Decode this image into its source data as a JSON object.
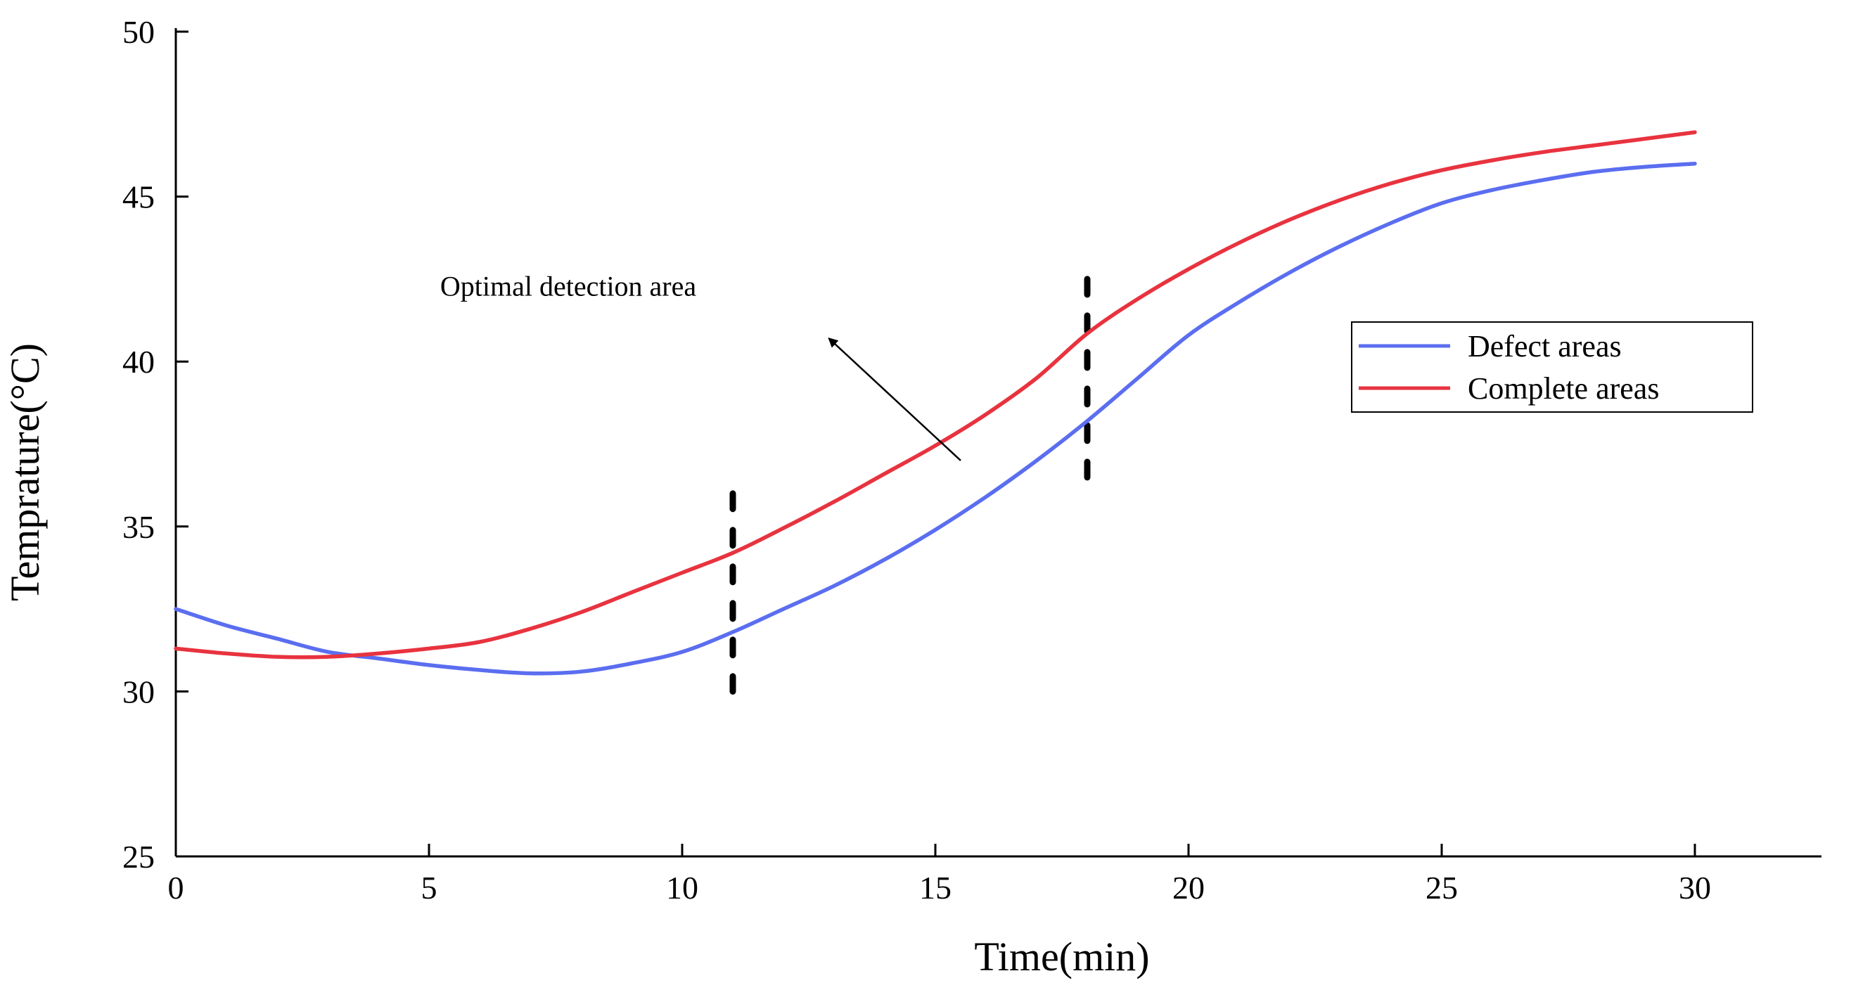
{
  "chart_data": {
    "type": "line",
    "title": "",
    "xlabel": "Time(min)",
    "ylabel": "Temprature(°C)",
    "xlim": [
      0,
      32.5
    ],
    "ylim": [
      25,
      50
    ],
    "xticks": [
      0,
      5,
      10,
      15,
      20,
      25,
      30
    ],
    "yticks": [
      25,
      30,
      35,
      40,
      45,
      50
    ],
    "grid": false,
    "legend_position": "right",
    "series": [
      {
        "name": "Defect areas",
        "color": "#5b6ef0",
        "x": [
          0,
          1,
          2,
          3,
          4,
          5,
          6,
          7,
          8,
          9,
          10,
          11,
          12,
          13,
          14,
          15,
          16,
          17,
          18,
          19,
          20,
          21,
          22,
          23,
          24,
          25,
          26,
          27,
          28,
          29,
          30
        ],
        "y": [
          32.5,
          32.0,
          31.6,
          31.2,
          31.0,
          30.8,
          30.65,
          30.55,
          30.6,
          30.85,
          31.2,
          31.8,
          32.5,
          33.2,
          34.0,
          34.9,
          35.9,
          37.0,
          38.2,
          39.5,
          40.8,
          41.8,
          42.7,
          43.5,
          44.2,
          44.8,
          45.2,
          45.5,
          45.75,
          45.9,
          46.0
        ]
      },
      {
        "name": "Complete areas",
        "color": "#e8333f",
        "x": [
          0,
          1,
          2,
          3,
          4,
          5,
          6,
          7,
          8,
          9,
          10,
          11,
          12,
          13,
          14,
          15,
          16,
          17,
          18,
          19,
          20,
          21,
          22,
          23,
          24,
          25,
          26,
          27,
          28,
          29,
          30
        ],
        "y": [
          31.3,
          31.15,
          31.05,
          31.05,
          31.15,
          31.3,
          31.5,
          31.9,
          32.4,
          33.0,
          33.6,
          34.2,
          34.95,
          35.75,
          36.6,
          37.45,
          38.4,
          39.5,
          40.85,
          41.9,
          42.8,
          43.6,
          44.3,
          44.9,
          45.4,
          45.8,
          46.1,
          46.35,
          46.55,
          46.75,
          46.95
        ]
      }
    ],
    "markers": [
      {
        "type": "dashed-vline",
        "x": 11,
        "y_range": [
          30,
          36
        ]
      },
      {
        "type": "dashed-vline",
        "x": 18,
        "y_range": [
          36,
          42.5
        ]
      }
    ],
    "annotations": [
      {
        "text": "Optimal detection area",
        "text_anchor": [
          7.75,
          42.0
        ],
        "arrow_from": [
          15.5,
          37.0
        ],
        "arrow_to": [
          12.9,
          40.7
        ]
      }
    ]
  }
}
